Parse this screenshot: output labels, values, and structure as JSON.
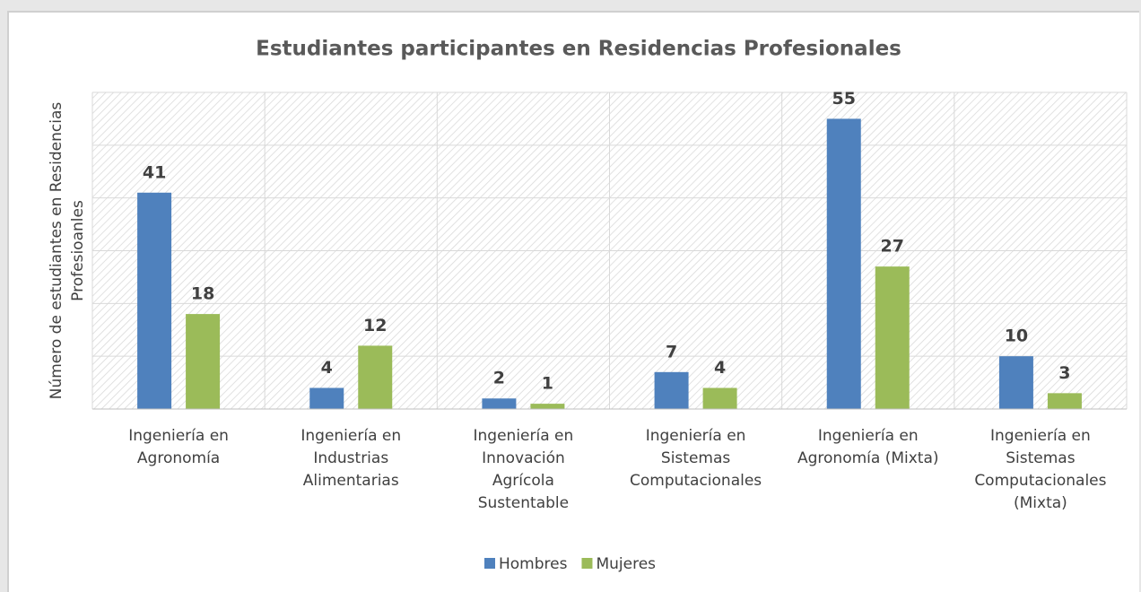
{
  "chart_data": {
    "type": "bar",
    "title": "Estudiantes participantes en Residencias Profesionales",
    "y_label": "Número de estudiantes en Residencias\nProfesioanles",
    "categories": [
      "Ingeniería en\nAgronomía",
      "Ingeniería en\nIndustrias\nAlimentarias",
      "Ingeniería en\nInnovación\nAgrícola\nSustentable",
      "Ingeniería en\nSistemas\nComputacionales",
      "Ingeniería en\nAgronomía (Mixta)",
      "Ingeniería en\nSistemas\nComputacionales\n(Mixta)"
    ],
    "series": [
      {
        "name": "Hombres",
        "color": "#4f81bd",
        "values": [
          41,
          4,
          2,
          7,
          55,
          10
        ]
      },
      {
        "name": "Mujeres",
        "color": "#9bbb59",
        "values": [
          18,
          12,
          1,
          4,
          27,
          3
        ]
      }
    ],
    "ylim": [
      0,
      60
    ],
    "yticks": [
      0,
      10,
      20,
      30,
      40,
      50,
      60
    ],
    "grid": true,
    "legend": "bottom"
  }
}
